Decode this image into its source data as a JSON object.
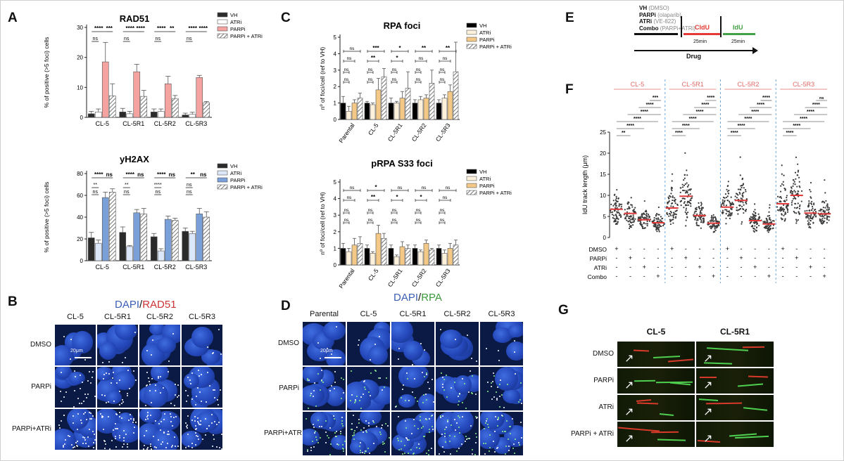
{
  "panels": {
    "A": "A",
    "B": "B",
    "C": "C",
    "D": "D",
    "E": "E",
    "F": "F",
    "G": "G"
  },
  "palettes": {
    "rad51": [
      "#2b2b2b",
      "#ffffff",
      "#f4a3a0",
      "hatch"
    ],
    "yh2ax": [
      "#2b2b2b",
      "#dce8fa",
      "#7aa0da",
      "hatch"
    ],
    "rpa": [
      "#000000",
      "#fdf1dc",
      "#f4c886",
      "hatch"
    ],
    "dna_scatter": "#3a3a3a",
    "median_line": "#e23a3a",
    "separator": "#6fa8dc",
    "cell_label": "#e06666"
  },
  "chart_data": [
    {
      "id": "A-rad51",
      "type": "bar",
      "title": "RAD51",
      "ylabel": "% of positive (>5 foci) cells",
      "ylim": [
        0,
        30
      ],
      "yticks": [
        0,
        10,
        20,
        30
      ],
      "categories": [
        "CL-5",
        "CL-5R1",
        "CL-5R2",
        "CL-5R3"
      ],
      "series": [
        {
          "name": "VH",
          "values": [
            1.2,
            1.8,
            1.8,
            0.8
          ],
          "err": [
            0.8,
            1.2,
            1.0,
            0.6
          ]
        },
        {
          "name": "ATRi",
          "values": [
            1.8,
            1.2,
            2.0,
            1.0
          ],
          "err": [
            1.0,
            0.8,
            0.8,
            0.7
          ]
        },
        {
          "name": "PARPi",
          "values": [
            18.5,
            15.2,
            11.2,
            13.3
          ],
          "err": [
            6.5,
            2.5,
            2.5,
            0.7
          ]
        },
        {
          "name": "PARPi + ATRi",
          "values": [
            7.2,
            7.0,
            6.3,
            4.9
          ],
          "err": [
            4.0,
            2.0,
            1.0,
            0.4
          ]
        }
      ],
      "sig_top": [
        [
          "****",
          "***"
        ],
        [
          "****",
          "****"
        ],
        [
          "****",
          "**"
        ],
        [
          "****",
          "****"
        ]
      ],
      "sig_low": [
        "ns",
        "ns",
        "ns",
        "ns"
      ]
    },
    {
      "id": "A-yh2ax",
      "type": "bar",
      "title": "yH2AX",
      "ylabel": "% of positive (>5 foci) cells",
      "ylim": [
        0,
        80
      ],
      "yticks": [
        0,
        20,
        40,
        60,
        80
      ],
      "categories": [
        "CL-5",
        "CL-5R1",
        "CL-5R2",
        "CL-5R3"
      ],
      "series": [
        {
          "name": "VH",
          "values": [
            21,
            26,
            22,
            27
          ],
          "err": [
            5,
            5,
            3,
            3
          ]
        },
        {
          "name": "ATRi",
          "values": [
            16,
            13,
            9,
            25
          ],
          "err": [
            3,
            1,
            2,
            2
          ]
        },
        {
          "name": "PARPi",
          "values": [
            58,
            44,
            38,
            43
          ],
          "err": [
            5,
            3,
            3,
            5
          ]
        },
        {
          "name": "PARPi + ATRi",
          "values": [
            63,
            43,
            37,
            40
          ],
          "err": [
            3,
            5,
            2,
            5
          ]
        }
      ],
      "sig_top": [
        [
          "****",
          "ns"
        ],
        [
          "****",
          "ns"
        ],
        [
          "****",
          "ns"
        ],
        [
          "**",
          "ns"
        ]
      ],
      "sig_low": [
        "**",
        "**",
        "****",
        "ns"
      ],
      "sig_low2": [
        "ns",
        "ns",
        "ns",
        "ns"
      ]
    },
    {
      "id": "C-rpa",
      "type": "bar",
      "title": "RPA foci",
      "ylabel": "nº of foci/cell (ref to VH)",
      "ylim": [
        0,
        5
      ],
      "yticks": [
        0,
        1,
        2,
        3,
        4,
        5
      ],
      "categories": [
        "Parental",
        "CL-5",
        "CL-5R1",
        "CL-5R2",
        "CL-5R3"
      ],
      "series": [
        {
          "name": "VH",
          "values": [
            1.0,
            1.0,
            1.0,
            1.0,
            1.0
          ],
          "err": [
            0.4,
            0.1,
            0.3,
            0.2,
            0.2
          ]
        },
        {
          "name": "ATRi",
          "values": [
            0.5,
            0.9,
            1.0,
            1.2,
            1.3
          ],
          "err": [
            0.3,
            0.1,
            0.1,
            0.2,
            0.2
          ]
        },
        {
          "name": "PARPi",
          "values": [
            1.0,
            1.8,
            1.3,
            1.3,
            1.7
          ],
          "err": [
            0.2,
            0.7,
            0.4,
            0.2,
            0.4
          ]
        },
        {
          "name": "PARPi + ATRi",
          "values": [
            1.3,
            2.6,
            1.9,
            2.2,
            2.9
          ],
          "err": [
            0.3,
            0.5,
            1.0,
            0.8,
            1.8
          ]
        }
      ],
      "sig": [
        [
          "ns",
          "ns",
          "ns",
          "ns"
        ],
        [
          "***",
          "**",
          "ns",
          "ns"
        ],
        [
          "*",
          "*",
          "ns",
          "ns"
        ],
        [
          "**",
          "ns",
          "ns",
          "ns"
        ],
        [
          "**",
          "ns",
          "ns",
          "ns"
        ]
      ]
    },
    {
      "id": "C-prpa",
      "type": "bar",
      "title": "pRPA S33 foci",
      "ylabel": "nº of foci/cell (ref to VH)",
      "ylim": [
        0,
        5
      ],
      "yticks": [
        0,
        1,
        2,
        3,
        4,
        5
      ],
      "categories": [
        "Parental",
        "CL-5",
        "CL-5R1",
        "CL-5R2",
        "CL-5R3"
      ],
      "series": [
        {
          "name": "VH",
          "values": [
            1.0,
            1.0,
            1.0,
            1.0,
            1.0
          ],
          "err": [
            0.3,
            0.2,
            0.2,
            0.2,
            0.2
          ]
        },
        {
          "name": "ATRi",
          "values": [
            0.8,
            0.7,
            0.5,
            0.8,
            0.7
          ],
          "err": [
            0.2,
            0.1,
            0.1,
            0.1,
            0.2
          ]
        },
        {
          "name": "PARPi",
          "values": [
            1.2,
            1.9,
            1.1,
            1.3,
            1.0
          ],
          "err": [
            0.4,
            0.5,
            0.3,
            0.2,
            0.3
          ]
        },
        {
          "name": "PARPi + ATRi",
          "values": [
            1.3,
            1.6,
            1.0,
            0.9,
            1.2
          ],
          "err": [
            0.4,
            0.3,
            0.2,
            0.1,
            0.3
          ]
        }
      ],
      "sig": [
        [
          "ns",
          "ns",
          "ns",
          "ns"
        ],
        [
          "*",
          "**",
          "ns",
          "ns"
        ],
        [
          "ns",
          "*",
          "ns",
          "ns"
        ],
        [
          "ns",
          "*",
          "ns",
          "ns"
        ],
        [
          "ns",
          "ns",
          "ns",
          "ns"
        ]
      ]
    },
    {
      "id": "F-dna",
      "type": "scatter",
      "title": "",
      "ylabel": "IdU track length (μm)",
      "ylim": [
        0,
        25
      ],
      "yticks": [
        0,
        5,
        10,
        15,
        20,
        25
      ],
      "groups": [
        "CL-5",
        "CL-5R1",
        "CL-5R2",
        "CL-5R3"
      ],
      "conditions": [
        "DMSO",
        "PARPi",
        "ATRi",
        "Combo"
      ],
      "medians": [
        [
          6.7,
          5.7,
          4.2,
          3.5
        ],
        [
          7.0,
          9.8,
          5.2,
          3.4
        ],
        [
          7.2,
          8.8,
          4.0,
          3.2
        ],
        [
          8.0,
          10.0,
          5.8,
          5.6
        ]
      ],
      "sig": [
        [
          "**",
          "****",
          "****",
          "****",
          "****",
          "***"
        ],
        [
          "****",
          "****",
          "****",
          "****",
          "****",
          "****"
        ],
        [
          "****",
          "****",
          "****",
          "****",
          "****",
          "****"
        ],
        [
          "****",
          "****",
          "****",
          "****",
          "****",
          "ns"
        ]
      ],
      "design": [
        [
          "+",
          "-",
          "-",
          "-"
        ],
        [
          "-",
          "+",
          "-",
          "-"
        ],
        [
          "-",
          "-",
          "+",
          "-"
        ],
        [
          "-",
          "-",
          "-",
          "+"
        ]
      ]
    }
  ],
  "panelB": {
    "title_dapi": "DAPI",
    "title_slash": "/",
    "title_marker": "RAD51",
    "cols": [
      "CL-5",
      "CL-5R1",
      "CL-5R2",
      "CL-5R3"
    ],
    "rows": [
      "DMSO",
      "PARPi",
      "PARPi+ATRi"
    ],
    "scale": "20μm"
  },
  "panelD": {
    "title_dapi": "DAPI",
    "title_slash": "/",
    "title_marker": "RPA",
    "cols": [
      "Parental",
      "CL-5",
      "CL-5R1",
      "CL-5R2",
      "CL-5R3"
    ],
    "rows": [
      "DMSO",
      "PARPi",
      "PARPi+ATRi"
    ],
    "scale": "20μm"
  },
  "panelE": {
    "legend": [
      {
        "name": "VH",
        "detail": "(DMSO)"
      },
      {
        "name": "PARPi",
        "detail": "(olaparib)"
      },
      {
        "name": "ATRi",
        "detail": "(VE-822)"
      },
      {
        "name": "Combo",
        "detail": "(PARPi+ATRi)"
      }
    ],
    "cldu": "CldU",
    "idu": "IdU",
    "time1": "25min",
    "time2": "25min",
    "drug": "Drug"
  },
  "panelG": {
    "cols": [
      "CL-5",
      "CL-5R1"
    ],
    "rows": [
      "DMSO",
      "PARPi",
      "ATRi",
      "PARPi + ATRi"
    ]
  }
}
